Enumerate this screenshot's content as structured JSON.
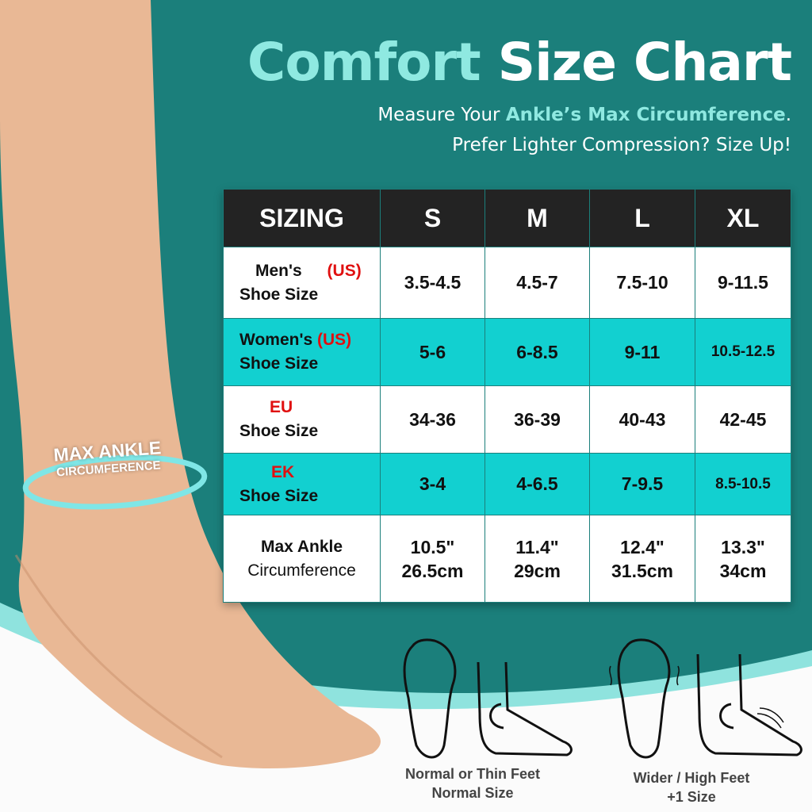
{
  "title": {
    "part1": "Comfort",
    "part2": "Size Chart"
  },
  "subtitle": {
    "line1_prefix": "Measure Your ",
    "line1_highlight": "Ankle’s Max Circumference",
    "line1_suffix": ".",
    "line2": "Prefer Lighter Compression? Size Up!"
  },
  "ankle_label": {
    "line1": "MAX ANKLE",
    "line2": "CIRCUMFERENCE"
  },
  "table": {
    "headers": [
      "SIZING",
      "S",
      "M",
      "L",
      "XL"
    ],
    "rows": [
      {
        "label1": "Men's",
        "tag": "(US)",
        "label2": "Shoe Size",
        "values": [
          "3.5-4.5",
          "4.5-7",
          "7.5-10",
          "9-11.5"
        ]
      },
      {
        "label1": "Women's",
        "tag": "(US)",
        "label2": "Shoe Size",
        "values": [
          "5-6",
          "6-8.5",
          "9-11",
          "10.5-12.5"
        ]
      },
      {
        "label1": "",
        "tag": "EU",
        "label2": "Shoe Size",
        "values": [
          "34-36",
          "36-39",
          "40-43",
          "42-45"
        ]
      },
      {
        "label1": "",
        "tag": "EK",
        "label2": "Shoe Size",
        "values": [
          "3-4",
          "4-6.5",
          "7-9.5",
          "8.5-10.5"
        ]
      },
      {
        "label1": "Max Ankle",
        "tag": "",
        "label2": "Circumference",
        "values": [
          "10.5\" 26.5cm",
          "11.4\" 29cm",
          "12.4\" 31.5cm",
          "13.3\" 34cm"
        ]
      }
    ],
    "max_ankle": [
      [
        "10.5\"",
        "26.5cm"
      ],
      [
        "11.4\"",
        "29cm"
      ],
      [
        "12.4\"",
        "31.5cm"
      ],
      [
        "13.3\"",
        "34cm"
      ]
    ]
  },
  "feet": {
    "normal": {
      "line1": "Normal or Thin Feet",
      "line2": "Normal Size"
    },
    "wide": {
      "line1": "Wider / High Feet",
      "line2": "+1 Size"
    }
  },
  "colors": {
    "background": "#1b7f7b",
    "accent": "#8fe9e1",
    "row_highlight": "#12d0d0",
    "header": "#232323",
    "tag_red": "#e01010"
  }
}
